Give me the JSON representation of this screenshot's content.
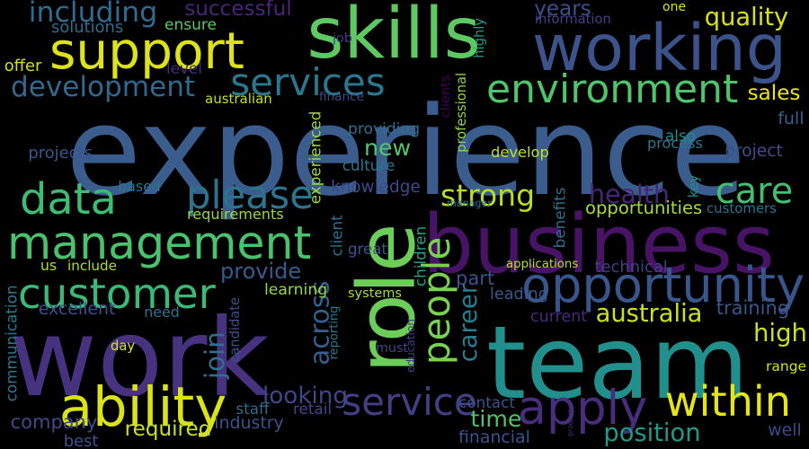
{
  "background": "#000000",
  "words": [
    {
      "text": "experience",
      "color": "#3b5d8e"
    },
    {
      "text": "work",
      "color": "#46327e"
    },
    {
      "text": "team",
      "color": "#21908c"
    },
    {
      "text": "business",
      "color": "#471365"
    },
    {
      "text": "skills",
      "color": "#5ec962"
    },
    {
      "text": "working",
      "color": "#3b528b"
    },
    {
      "text": "role",
      "color": "#6ccd5a"
    },
    {
      "text": "management",
      "color": "#4ac16d"
    },
    {
      "text": "support",
      "color": "#dde318"
    },
    {
      "text": "customer",
      "color": "#3aba76"
    },
    {
      "text": "opportunity",
      "color": "#39568c"
    },
    {
      "text": "ability",
      "color": "#dae319"
    },
    {
      "text": "apply",
      "color": "#472d7b"
    },
    {
      "text": "environment",
      "color": "#4fc46a"
    },
    {
      "text": "services",
      "color": "#2a788e"
    },
    {
      "text": "service",
      "color": "#423f85"
    },
    {
      "text": "within",
      "color": "#e5e419"
    },
    {
      "text": "data",
      "color": "#3dbc74"
    },
    {
      "text": "please",
      "color": "#2c738e"
    },
    {
      "text": "care",
      "color": "#44bf70"
    },
    {
      "text": "people",
      "color": "#7ad151"
    },
    {
      "text": "development",
      "color": "#31688e"
    },
    {
      "text": "strong",
      "color": "#b5de2b"
    },
    {
      "text": "health",
      "color": "#482576"
    },
    {
      "text": "including",
      "color": "#2f6b8e"
    },
    {
      "text": "new",
      "color": "#54c568"
    },
    {
      "text": "across",
      "color": "#34608d"
    },
    {
      "text": "looking",
      "color": "#3f4788"
    },
    {
      "text": "join",
      "color": "#2e6f8e"
    },
    {
      "text": "provide",
      "color": "#375b8d"
    },
    {
      "text": "career",
      "color": "#287d8e"
    },
    {
      "text": "australia",
      "color": "#cde11d"
    },
    {
      "text": "company",
      "color": "#3e4989"
    },
    {
      "text": "required",
      "color": "#cae11f"
    },
    {
      "text": "time",
      "color": "#4ec36b"
    },
    {
      "text": "position",
      "color": "#1e9c89"
    },
    {
      "text": "high",
      "color": "#c8e020"
    },
    {
      "text": "years",
      "color": "#3c4f8a"
    },
    {
      "text": "successful",
      "color": "#482677"
    },
    {
      "text": "quality",
      "color": "#d8e219"
    },
    {
      "text": "part",
      "color": "#3b528b"
    },
    {
      "text": "sales",
      "color": "#eae51a"
    },
    {
      "text": "communication",
      "color": "#2a778e"
    },
    {
      "text": "knowledge",
      "color": "#3e4989"
    },
    {
      "text": "opportunities",
      "color": "#a5db36"
    },
    {
      "text": "training",
      "color": "#39558c"
    },
    {
      "text": "range",
      "color": "#d0e11c"
    },
    {
      "text": "excellent",
      "color": "#3c4f8a"
    },
    {
      "text": "candidate",
      "color": "#3b528b"
    },
    {
      "text": "client",
      "color": "#2d708e"
    },
    {
      "text": "children",
      "color": "#20a386"
    },
    {
      "text": "experienced",
      "color": "#9dd93b"
    },
    {
      "text": "professional",
      "color": "#8fd744"
    },
    {
      "text": "clients",
      "color": "#440154"
    },
    {
      "text": "highly",
      "color": "#1f9a8a"
    },
    {
      "text": "benefits",
      "color": "#2d708e"
    },
    {
      "text": "key",
      "color": "#21908d"
    },
    {
      "text": "process",
      "color": "#2a788e"
    },
    {
      "text": "also",
      "color": "#228b8d"
    },
    {
      "text": "develop",
      "color": "#c0df25"
    },
    {
      "text": "project",
      "color": "#3d4e8a"
    },
    {
      "text": "full",
      "color": "#33628d"
    },
    {
      "text": "information",
      "color": "#424086"
    },
    {
      "text": "one",
      "color": "#dae319"
    },
    {
      "text": "ensure",
      "color": "#58c765"
    },
    {
      "text": "solutions",
      "color": "#2f6c8e"
    },
    {
      "text": "job",
      "color": "#433e85"
    },
    {
      "text": "offer",
      "color": "#d0e11c"
    },
    {
      "text": "level",
      "color": "#472c7a"
    },
    {
      "text": "projects",
      "color": "#3a548c"
    },
    {
      "text": "based",
      "color": "#2b758e"
    },
    {
      "text": "requirements",
      "color": "#98d83e"
    },
    {
      "text": "culture",
      "color": "#2b748e"
    },
    {
      "text": "providing",
      "color": "#2e6e8e"
    },
    {
      "text": "manager",
      "color": "#2e6d8e"
    },
    {
      "text": "customers",
      "color": "#2c728e"
    },
    {
      "text": "technical",
      "color": "#433d84"
    },
    {
      "text": "applications",
      "color": "#b8de29"
    },
    {
      "text": "great",
      "color": "#3a548c"
    },
    {
      "text": "leading",
      "color": "#38598c"
    },
    {
      "text": "learning",
      "color": "#95d840"
    },
    {
      "text": "systems",
      "color": "#addc30"
    },
    {
      "text": "us",
      "color": "#addc30"
    },
    {
      "text": "include",
      "color": "#addc30"
    },
    {
      "text": "need",
      "color": "#2c728e"
    },
    {
      "text": "current",
      "color": "#482979"
    },
    {
      "text": "day",
      "color": "#dae319"
    },
    {
      "text": "reporting",
      "color": "#2a778e"
    },
    {
      "text": "education",
      "color": "#433e85"
    },
    {
      "text": "must",
      "color": "#3f4889"
    },
    {
      "text": "contact",
      "color": "#3a538b"
    },
    {
      "text": "retail",
      "color": "#3f4889"
    },
    {
      "text": "staff",
      "color": "#2f6c8e"
    },
    {
      "text": "industry",
      "color": "#3b528b"
    },
    {
      "text": "best",
      "color": "#3b528b"
    },
    {
      "text": "financial",
      "color": "#3a538b"
    },
    {
      "text": "product",
      "color": "#46327e"
    },
    {
      "text": "well",
      "color": "#3e4989"
    },
    {
      "text": "australian",
      "color": "#c2df23"
    },
    {
      "text": "finance",
      "color": "#3f4788"
    }
  ]
}
